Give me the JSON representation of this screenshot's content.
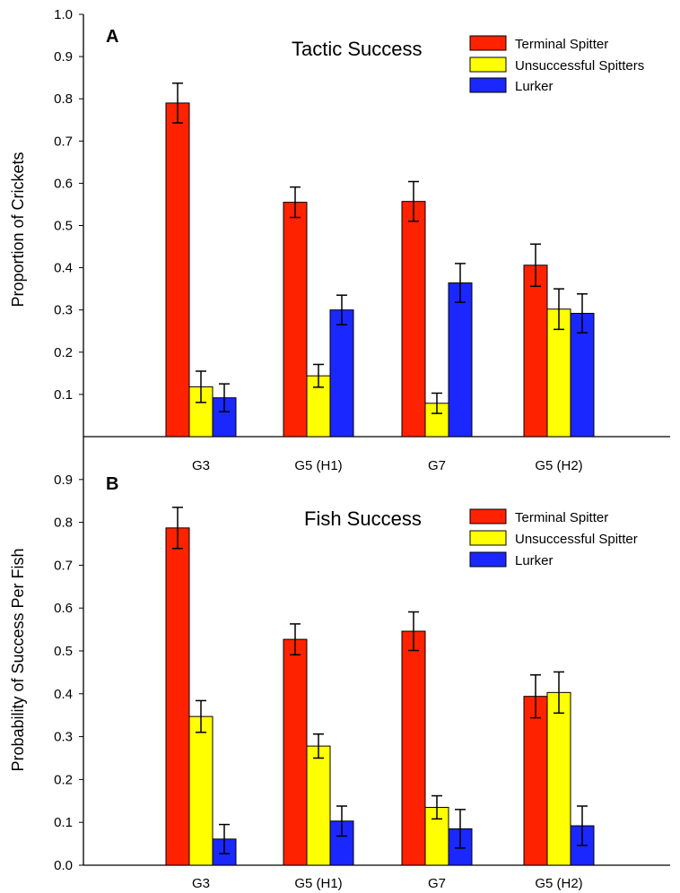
{
  "chart_data": [
    {
      "type": "bar",
      "panel": "A",
      "title": "Tactic Success",
      "xlabel": "",
      "ylabel": "Proportion of Crickets",
      "ylim": [
        0,
        1.0
      ],
      "yticks": [
        "0.1",
        "0.2",
        "0.3",
        "0.4",
        "0.5",
        "0.6",
        "0.7",
        "0.8",
        "0.9",
        "1.0"
      ],
      "categories": [
        "G3",
        "G5 (H1)",
        "G7",
        "G5 (H2)"
      ],
      "legend_position": "top-right",
      "grid": false,
      "series": [
        {
          "name": "Terminal Spitter",
          "color": "#ff2200",
          "values": [
            0.79,
            0.555,
            0.557,
            0.406
          ],
          "errors": [
            0.047,
            0.036,
            0.047,
            0.05
          ]
        },
        {
          "name": "Unsuccessful Spitters",
          "color": "#ffff00",
          "values": [
            0.118,
            0.144,
            0.079,
            0.302
          ],
          "errors": [
            0.037,
            0.027,
            0.024,
            0.048
          ]
        },
        {
          "name": "Lurker",
          "color": "#1a28ff",
          "values": [
            0.092,
            0.3,
            0.364,
            0.292
          ],
          "errors": [
            0.033,
            0.035,
            0.046,
            0.046
          ]
        }
      ]
    },
    {
      "type": "bar",
      "panel": "B",
      "title": "Fish Success",
      "xlabel": "",
      "ylabel": "Probability of Success Per Fish",
      "ylim": [
        0,
        1.0
      ],
      "yticks": [
        "0.0",
        "0.1",
        "0.2",
        "0.3",
        "0.4",
        "0.5",
        "0.6",
        "0.7",
        "0.8",
        "0.9"
      ],
      "categories": [
        "G3",
        "G5 (H1)",
        "G7",
        "G5 (H2)"
      ],
      "legend_position": "top-right",
      "grid": false,
      "series": [
        {
          "name": "Terminal Spitter",
          "color": "#ff2200",
          "values": [
            0.787,
            0.527,
            0.546,
            0.394
          ],
          "errors": [
            0.048,
            0.036,
            0.045,
            0.05
          ]
        },
        {
          "name": "Unsuccessful Spitter",
          "color": "#ffff00",
          "values": [
            0.347,
            0.278,
            0.135,
            0.403
          ],
          "errors": [
            0.037,
            0.028,
            0.027,
            0.048
          ]
        },
        {
          "name": "Lurker",
          "color": "#1a28ff",
          "values": [
            0.061,
            0.103,
            0.085,
            0.092
          ],
          "errors": [
            0.034,
            0.035,
            0.045,
            0.046
          ]
        }
      ]
    }
  ]
}
